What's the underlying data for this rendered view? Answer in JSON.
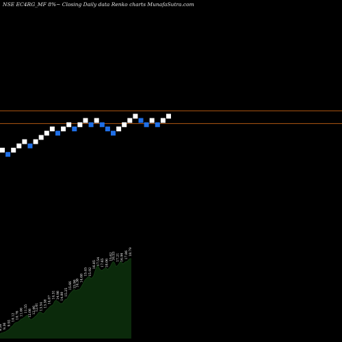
{
  "chart_data": {
    "type": "renko",
    "title": "NSE EC4RG_MF 8%~ Closing Daily data  Renko charts MunafaSutra.com",
    "colors": {
      "background": "#000000",
      "up_brick": "#ffffff",
      "down_brick": "#1f6fe6",
      "reference_line": "#b35a12",
      "volume_fill": "#0b2a0b",
      "volume_line": "#ffffff"
    },
    "bricks": [
      {
        "dir": "up",
        "level": 0
      },
      {
        "dir": "down",
        "level": -1
      },
      {
        "dir": "up",
        "level": 0
      },
      {
        "dir": "up",
        "level": 1
      },
      {
        "dir": "up",
        "level": 2
      },
      {
        "dir": "down",
        "level": 1
      },
      {
        "dir": "up",
        "level": 2
      },
      {
        "dir": "up",
        "level": 3
      },
      {
        "dir": "up",
        "level": 4
      },
      {
        "dir": "up",
        "level": 5
      },
      {
        "dir": "down",
        "level": 4
      },
      {
        "dir": "up",
        "level": 5
      },
      {
        "dir": "up",
        "level": 6
      },
      {
        "dir": "down",
        "level": 5
      },
      {
        "dir": "up",
        "level": 6
      },
      {
        "dir": "up",
        "level": 7
      },
      {
        "dir": "down",
        "level": 6
      },
      {
        "dir": "up",
        "level": 7
      },
      {
        "dir": "down",
        "level": 6
      },
      {
        "dir": "down",
        "level": 5
      },
      {
        "dir": "down",
        "level": 4
      },
      {
        "dir": "up",
        "level": 5
      },
      {
        "dir": "up",
        "level": 6
      },
      {
        "dir": "up",
        "level": 7
      },
      {
        "dir": "up",
        "level": 8
      },
      {
        "dir": "down",
        "level": 7
      },
      {
        "dir": "down",
        "level": 6
      },
      {
        "dir": "up",
        "level": 7
      },
      {
        "dir": "down",
        "level": 6
      },
      {
        "dir": "up",
        "level": 7
      },
      {
        "dir": "up",
        "level": 8
      }
    ],
    "reference_levels": [
      10,
      7
    ],
    "volume": {
      "values": [
        7.6,
        9.3,
        9.7,
        10.8,
        11.5,
        13.1,
        14.5,
        16.5,
        19.5,
        21.1,
        24.3,
        26.2,
        26.9,
        27.7,
        29.7,
        32.3,
        32.8,
        34.7,
        36.2,
        38.5,
        38.6,
        34.1,
        31.5,
        32.5,
        34.1,
        36.2,
        38.2,
        41.1,
        44.0,
        44.6,
        42.4,
        41.2,
        43.3,
        46.8,
        48.6,
        51.1,
        53.5,
        55.0,
        56.6,
        61.7,
        63.7,
        62.4,
        61.0,
        58.5,
        58.1,
        59.4,
        63.3,
        65.4,
        66.0,
        70.6,
        74.3,
        77.1,
        79.3,
        82.0,
        79.5,
        80.6,
        81.5,
        81.9,
        85.5,
        89.5,
        94.4,
        98.2,
        100,
        102.4,
        103.4,
        100.0,
        101.1,
        104.6,
        112.0,
        118.5,
        122.0,
        117.1,
        114.0,
        113.0,
        115.0,
        116.5,
        118.0,
        114.5,
        117.0,
        120.0,
        125.0,
        128.0,
        126.0,
        120.0,
        121.0,
        124.0,
        128.0,
        127.0,
        124.0,
        126.0,
        128.0,
        128.0,
        131.0,
        133.0,
        133.0
      ],
      "labels": [
        {
          "i": 1,
          "text": "8.26"
        },
        {
          "i": 3,
          "text": "9.36"
        },
        {
          "i": 5,
          "text": "9.92"
        },
        {
          "i": 7,
          "text": "10.12"
        },
        {
          "i": 9,
          "text": "10.76"
        },
        {
          "i": 11,
          "text": "11.06"
        },
        {
          "i": 13,
          "text": "11.55"
        },
        {
          "i": 15,
          "text": "12.08"
        },
        {
          "i": 17,
          "text": "12.46"
        },
        {
          "i": 19,
          "text": "12.61"
        },
        {
          "i": 21,
          "text": "13.54"
        },
        {
          "i": 23,
          "text": "13.38"
        },
        {
          "i": 25,
          "text": "14.07"
        },
        {
          "i": 27,
          "text": "14.31"
        },
        {
          "i": 29,
          "text": "14.98"
        },
        {
          "i": 31,
          "text": "14.80"
        },
        {
          "i": 33,
          "text": "15.25"
        },
        {
          "i": 35,
          "text": "15.66"
        },
        {
          "i": 37,
          "text": "15.96"
        },
        {
          "i": 39,
          "text": "14.38"
        },
        {
          "i": 41,
          "text": "14.68"
        },
        {
          "i": 43,
          "text": "15.45"
        },
        {
          "i": 45,
          "text": "15.92"
        },
        {
          "i": 47,
          "text": "16.85"
        },
        {
          "i": 49,
          "text": "17.54"
        },
        {
          "i": 51,
          "text": "17.65"
        },
        {
          "i": 53,
          "text": "18.06"
        },
        {
          "i": 55,
          "text": "15.62"
        },
        {
          "i": 57,
          "text": "16.53"
        },
        {
          "i": 59,
          "text": "17.21"
        },
        {
          "i": 61,
          "text": "16.96"
        },
        {
          "i": 63,
          "text": "17.86"
        },
        {
          "i": 65,
          "text": "18.79"
        }
      ]
    }
  }
}
